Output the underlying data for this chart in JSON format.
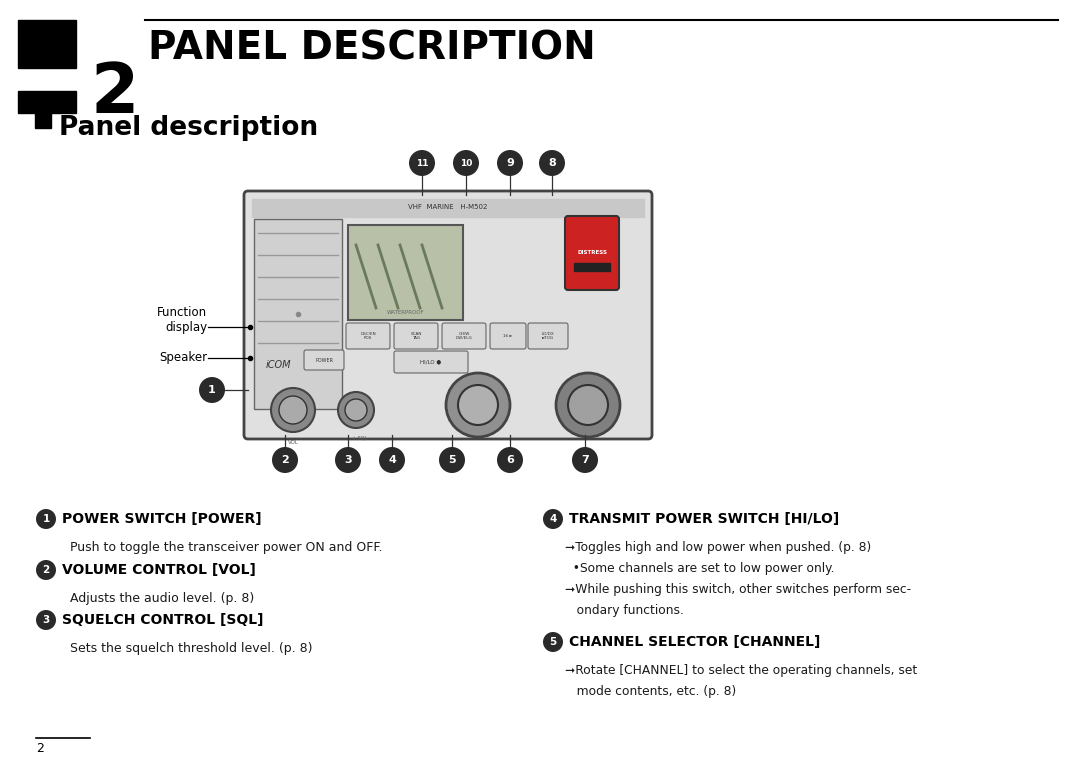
{
  "page_number": "2",
  "chapter_title": "PANEL DESCRIPTION",
  "section_title": "Panel description",
  "bg_color": "#ffffff",
  "text_color": "#1a1a1a",
  "descriptions_left": [
    {
      "bullet": "❶",
      "heading": "POWER SWITCH [POWER]",
      "body": "Push to toggle the transceiver power ON and OFF."
    },
    {
      "bullet": "❷",
      "heading": "VOLUME CONTROL [VOL]",
      "body": "Adjusts the audio level. (p. 8)"
    },
    {
      "bullet": "❸",
      "heading": "SQUELCH CONTROL [SQL]",
      "body": "Sets the squelch threshold level. (p. 8)"
    }
  ],
  "descriptions_right": [
    {
      "bullet": "❹",
      "heading": "TRANSMIT POWER SWITCH [HI/LO]",
      "body_lines": [
        "➞Toggles high and low power when pushed. (p. 8)",
        "  •Some channels are set to low power only.",
        "➞While pushing this switch, other switches perform sec-",
        "   ondary functions."
      ]
    },
    {
      "bullet": "❺",
      "heading": "CHANNEL SELECTOR [CHANNEL]",
      "body_lines": [
        "➞Rotate [CHANNEL] to select the operating channels, set",
        "   mode contents, etc. (p. 8)"
      ]
    }
  ]
}
